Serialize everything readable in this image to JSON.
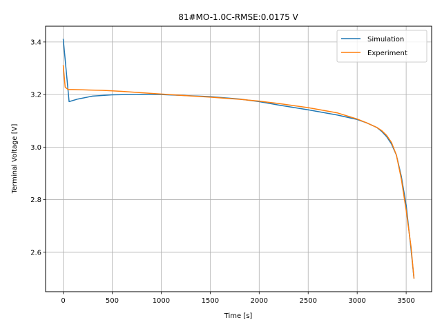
{
  "chart_data": {
    "type": "line",
    "title": "81#MO-1.0C-RMSE:0.0175 V",
    "xlabel": "Time [s]",
    "ylabel": "Terminal Voltage [V]",
    "xlim": [
      -180,
      3760
    ],
    "ylim": [
      2.45,
      3.46
    ],
    "xticks": [
      0,
      500,
      1000,
      1500,
      2000,
      2500,
      3000,
      3500
    ],
    "xtick_labels": [
      "0",
      "500",
      "1000",
      "1500",
      "2000",
      "2500",
      "3000",
      "3500"
    ],
    "yticks": [
      2.6,
      2.8,
      3.0,
      3.2,
      3.4
    ],
    "ytick_labels": [
      "2.6",
      "2.8",
      "3.0",
      "3.2",
      "3.4"
    ],
    "grid": true,
    "legend_position": "top-right",
    "series": [
      {
        "name": "Simulation",
        "color": "#1f77b4",
        "x": [
          0,
          60,
          150,
          300,
          500,
          800,
          1000,
          1200,
          1500,
          1800,
          2000,
          2200,
          2500,
          2800,
          3000,
          3100,
          3200,
          3250,
          3300,
          3350,
          3400,
          3450,
          3500,
          3550,
          3580
        ],
        "y": [
          3.412,
          3.173,
          3.183,
          3.194,
          3.199,
          3.201,
          3.2,
          3.197,
          3.192,
          3.183,
          3.173,
          3.16,
          3.142,
          3.122,
          3.105,
          3.092,
          3.075,
          3.06,
          3.04,
          3.012,
          2.97,
          2.89,
          2.78,
          2.61,
          2.5
        ]
      },
      {
        "name": "Experiment",
        "color": "#ff7f0e",
        "x": [
          0,
          20,
          50,
          100,
          200,
          400,
          600,
          800,
          1000,
          1200,
          1500,
          1800,
          2000,
          2200,
          2500,
          2800,
          3000,
          3100,
          3200,
          3250,
          3300,
          3350,
          3400,
          3450,
          3500,
          3550,
          3580
        ],
        "y": [
          3.312,
          3.228,
          3.219,
          3.219,
          3.218,
          3.216,
          3.212,
          3.207,
          3.202,
          3.197,
          3.19,
          3.182,
          3.175,
          3.166,
          3.15,
          3.13,
          3.107,
          3.092,
          3.075,
          3.063,
          3.045,
          3.018,
          2.97,
          2.88,
          2.76,
          2.62,
          2.5
        ]
      }
    ]
  }
}
